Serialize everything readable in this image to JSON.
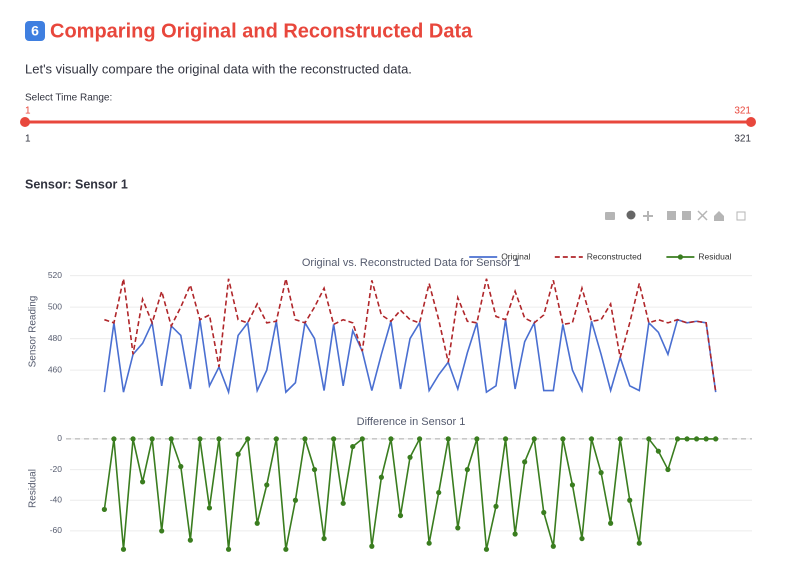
{
  "header": {
    "icon": "6",
    "title": "Comparing Original and Reconstructed Data",
    "caption": "Let's visually compare the original data with the reconstructed data."
  },
  "slider": {
    "label": "Select Time Range:",
    "min": 1,
    "max": 321,
    "value": [
      1,
      321
    ]
  },
  "sensor_label": "Sensor: Sensor 1",
  "chart_data": [
    {
      "type": "line",
      "title": "Original vs. Reconstructed Data for Sensor 1",
      "y_label": "Sensor Reading",
      "legend": "top-right",
      "grid": true,
      "x": [
        1,
        6,
        11,
        16,
        21,
        26,
        31,
        36,
        41,
        46,
        51,
        56,
        61,
        66,
        71,
        76,
        81,
        86,
        91,
        96,
        101,
        106,
        111,
        116,
        121,
        126,
        131,
        136,
        141,
        146,
        151,
        156,
        161,
        166,
        171,
        176,
        181,
        186,
        191,
        196,
        201,
        206,
        211,
        216,
        221,
        226,
        231,
        236,
        241,
        246,
        251,
        256,
        261,
        266,
        271,
        276,
        281,
        286,
        291,
        296,
        301,
        306,
        311,
        316,
        321
      ],
      "xlim": [
        -17,
        340
      ],
      "ylim": [
        441,
        528
      ],
      "yticks": [
        460,
        480,
        500,
        520
      ],
      "series": [
        {
          "name": "Original",
          "color": "#4a6fd1",
          "values": [
            446,
            490,
            446,
            470,
            477,
            490,
            450,
            488,
            482,
            448,
            492,
            450,
            462,
            446,
            482,
            490,
            447,
            460,
            491,
            446,
            452,
            490,
            480,
            447,
            489,
            450,
            485,
            472,
            447,
            470,
            491,
            448,
            480,
            490,
            447,
            457,
            465,
            448,
            471,
            490,
            446,
            450,
            492,
            448,
            478,
            490,
            447,
            447,
            489,
            460,
            447,
            491,
            470,
            447,
            468,
            450,
            447,
            490,
            484,
            470,
            492,
            490,
            491,
            490,
            446
          ]
        },
        {
          "name": "Reconstructed",
          "color": "#b0262a",
          "dash": true,
          "values": [
            492,
            490,
            518,
            470,
            505,
            490,
            510,
            488,
            500,
            514,
            492,
            495,
            462,
            518,
            492,
            490,
            502,
            490,
            491,
            518,
            492,
            490,
            500,
            512,
            489,
            492,
            490,
            472,
            517,
            495,
            491,
            498,
            492,
            490,
            515,
            492,
            465,
            506,
            491,
            490,
            518,
            494,
            492,
            510,
            493,
            490,
            495,
            517,
            489,
            490,
            512,
            491,
            492,
            502,
            468,
            490,
            515,
            490,
            492,
            490,
            492,
            490,
            491,
            490,
            446
          ]
        }
      ]
    },
    {
      "type": "line",
      "title": "Difference in Sensor 1",
      "y_label": "Residual",
      "grid": true,
      "zeroline": true,
      "x": [
        1,
        6,
        11,
        16,
        21,
        26,
        31,
        36,
        41,
        46,
        51,
        56,
        61,
        66,
        71,
        76,
        81,
        86,
        91,
        96,
        101,
        106,
        111,
        116,
        121,
        126,
        131,
        136,
        141,
        146,
        151,
        156,
        161,
        166,
        171,
        176,
        181,
        186,
        191,
        196,
        201,
        206,
        211,
        216,
        221,
        226,
        231,
        236,
        241,
        246,
        251,
        256,
        261,
        266,
        271,
        276,
        281,
        286,
        291,
        296,
        301,
        306,
        311,
        316,
        321
      ],
      "xlim": [
        -17,
        340
      ],
      "ylim": [
        -77,
        4.5
      ],
      "yticks": [
        0,
        -20,
        -40,
        -60
      ],
      "series": [
        {
          "name": "Residual",
          "color": "#3a7d1f",
          "marker": true,
          "values": [
            -46,
            0,
            -72,
            0,
            -28,
            0,
            -60,
            0,
            -18,
            -66,
            0,
            -45,
            0,
            -72,
            -10,
            0,
            -55,
            -30,
            0,
            -72,
            -40,
            0,
            -20,
            -65,
            0,
            -42,
            -5,
            0,
            -70,
            -25,
            0,
            -50,
            -12,
            0,
            -68,
            -35,
            0,
            -58,
            -20,
            0,
            -72,
            -44,
            0,
            -62,
            -15,
            0,
            -48,
            -70,
            0,
            -30,
            -65,
            0,
            -22,
            -55,
            0,
            -40,
            -68,
            0,
            -8,
            -20,
            0,
            0,
            0,
            0,
            0
          ]
        }
      ]
    }
  ]
}
